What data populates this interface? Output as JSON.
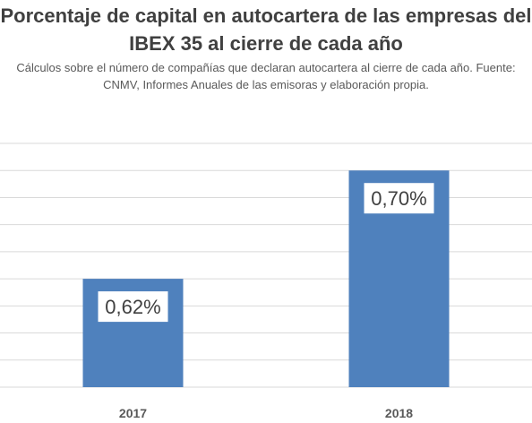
{
  "chart_data": {
    "type": "bar",
    "title": "Porcentaje de capital en autocartera de las empresas del IBEX 35  al cierre de cada año",
    "subtitle": "Cálculos sobre el número de compañías que declaran autocartera al cierre de cada año. Fuente:  CNMV,  Informes Anuales de las emisoras y elaboración propia.",
    "categories": [
      "2017",
      "2018"
    ],
    "values": [
      0.62,
      0.7
    ],
    "data_labels": [
      "0,62%",
      "0,70%"
    ],
    "ylim": [
      0.54,
      0.72
    ],
    "grid": true,
    "bar_color": "#4f81bd",
    "grid_color": "#d9d9d9"
  }
}
